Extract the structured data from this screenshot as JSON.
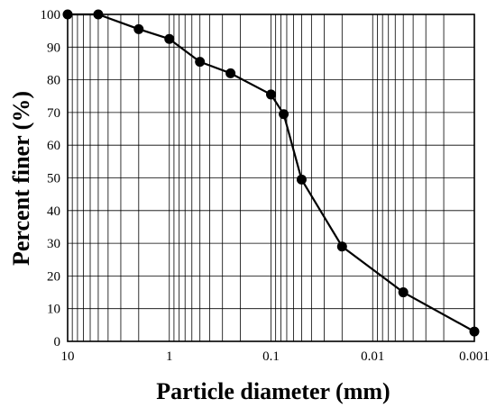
{
  "chart_data": {
    "type": "line",
    "title": "",
    "xlabel": "Particle diameter (mm)",
    "ylabel": "Percent finer (%)",
    "x_scale": "log",
    "x_reversed": true,
    "xlim": [
      10,
      0.001
    ],
    "ylim": [
      0,
      100
    ],
    "grid": true,
    "x_ticks": [
      10,
      1,
      0.1,
      0.01,
      0.001
    ],
    "x_tick_labels": [
      "10",
      "1",
      "0.1",
      "0.01",
      "0.001"
    ],
    "y_ticks": [
      0,
      10,
      20,
      30,
      40,
      50,
      60,
      70,
      80,
      90,
      100
    ],
    "y_tick_labels": [
      "0",
      "10",
      "20",
      "30",
      "40",
      "50",
      "60",
      "70",
      "80",
      "90",
      "100"
    ],
    "series": [
      {
        "x": [
          10,
          5,
          2,
          1,
          0.5,
          0.25,
          0.1,
          0.075,
          0.05,
          0.02,
          0.005,
          0.001
        ],
        "y": [
          100,
          100,
          95.5,
          92.5,
          85.5,
          82,
          75.5,
          69.5,
          49.5,
          29,
          15,
          3
        ],
        "color": "#000000",
        "marker": "circle"
      }
    ]
  }
}
